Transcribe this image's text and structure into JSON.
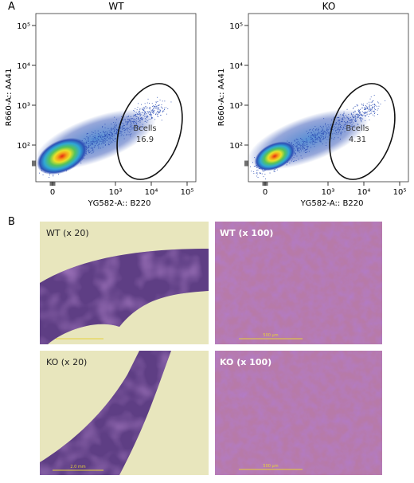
{
  "panel_a": {
    "label": "A",
    "x_label": "YG582-A:: B220",
    "y_label": "R660-A:: AA41",
    "xticks": [
      0,
      {
        "value": 1000,
        "label": "10³"
      },
      {
        "value": 10000,
        "label": "10⁴"
      },
      {
        "value": 100000,
        "label": "10⁵"
      }
    ],
    "yticks": [
      {
        "value": 100,
        "label": "10²"
      },
      {
        "value": 1000,
        "label": "10³"
      },
      {
        "value": 10000,
        "label": "10⁴"
      },
      {
        "value": 100000,
        "label": "10⁵"
      }
    ],
    "plots": [
      {
        "title": "WT",
        "gate_name": "Bcells",
        "gate_value": "16.9"
      },
      {
        "title": "KO",
        "gate_name": "Bcells",
        "gate_value": "4.31"
      }
    ]
  },
  "panel_b": {
    "label": "B",
    "images": [
      {
        "caption": "WT (x 20)"
      },
      {
        "caption": "WT (x 100)",
        "scale_bar": "500 µm"
      },
      {
        "caption": "KO (x 20)",
        "scale_bar": "2.0 mm"
      },
      {
        "caption": "KO (x 100)",
        "scale_bar": "500 µm"
      }
    ]
  }
}
